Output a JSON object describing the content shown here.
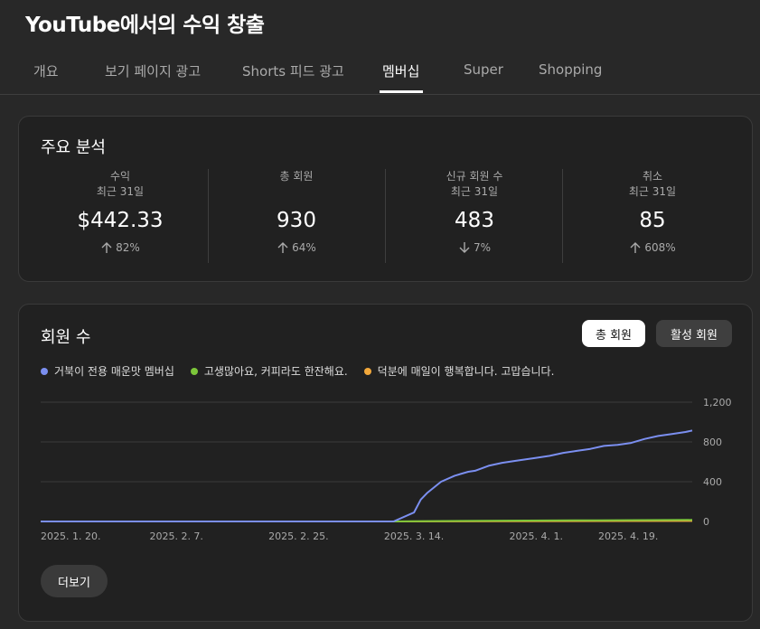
{
  "page": {
    "title": "YouTube에서의 수익 창출"
  },
  "tabs": [
    {
      "label": "개요",
      "active": false
    },
    {
      "label": "보기 페이지 광고",
      "active": false
    },
    {
      "label": "Shorts 피드 광고",
      "active": false
    },
    {
      "label": "멤버십",
      "active": true
    },
    {
      "label": "Super",
      "active": false
    },
    {
      "label": "Shopping",
      "active": false
    }
  ],
  "key_analysis": {
    "title": "주요 분석",
    "metrics": [
      {
        "label": "수익",
        "sub": "최근 31일",
        "value": "$442.33",
        "change": "82%",
        "direction": "up"
      },
      {
        "label": "총 회원",
        "sub": "",
        "value": "930",
        "change": "64%",
        "direction": "up"
      },
      {
        "label": "신규 회원 수",
        "sub": "최근 31일",
        "value": "483",
        "change": "7%",
        "direction": "down"
      },
      {
        "label": "취소",
        "sub": "최근 31일",
        "value": "85",
        "change": "608%",
        "direction": "up"
      }
    ]
  },
  "members": {
    "title": "회원 수",
    "toggle_total": "총 회원",
    "toggle_active": "활성 회원",
    "more_label": "더보기"
  },
  "colors": {
    "background": "#282828",
    "card": "#212121",
    "series_1": "#7b8ff0",
    "series_2": "#7cc63a",
    "series_3": "#f2a83b"
  },
  "chart_data": {
    "type": "line",
    "x_ticks": [
      "2025. 1. 20.",
      "2025. 2. 7.",
      "2025. 2. 25.",
      "2025. 3. 14.",
      "2025. 4. 1.",
      "2025. 4. 19."
    ],
    "x_range": [
      "2025-01-18",
      "2025-04-24"
    ],
    "y_ticks": [
      "0",
      "400",
      "800",
      "1,200"
    ],
    "ylim": [
      0,
      1200
    ],
    "grid": true,
    "legend_position": "top-left",
    "series": [
      {
        "name": "거북이 전용 매운맛 멤버십",
        "color": "#7b8ff0",
        "points": [
          [
            "2025-01-18",
            0
          ],
          [
            "2025-03-11",
            0
          ],
          [
            "2025-03-14",
            90
          ],
          [
            "2025-03-15",
            220
          ],
          [
            "2025-03-16",
            290
          ],
          [
            "2025-03-18",
            400
          ],
          [
            "2025-03-20",
            460
          ],
          [
            "2025-03-22",
            500
          ],
          [
            "2025-03-23",
            510
          ],
          [
            "2025-03-25",
            560
          ],
          [
            "2025-03-27",
            590
          ],
          [
            "2025-03-29",
            610
          ],
          [
            "2025-04-01",
            640
          ],
          [
            "2025-04-03",
            660
          ],
          [
            "2025-04-05",
            690
          ],
          [
            "2025-04-07",
            710
          ],
          [
            "2025-04-09",
            730
          ],
          [
            "2025-04-11",
            760
          ],
          [
            "2025-04-13",
            770
          ],
          [
            "2025-04-15",
            790
          ],
          [
            "2025-04-17",
            830
          ],
          [
            "2025-04-19",
            860
          ],
          [
            "2025-04-21",
            880
          ],
          [
            "2025-04-22",
            890
          ],
          [
            "2025-04-23",
            900
          ],
          [
            "2025-04-24",
            915
          ]
        ]
      },
      {
        "name": "고생많아요, 커피라도 한잔해요.",
        "color": "#7cc63a",
        "points": [
          [
            "2025-01-18",
            0
          ],
          [
            "2025-03-11",
            0
          ],
          [
            "2025-03-14",
            3
          ],
          [
            "2025-03-27",
            8
          ],
          [
            "2025-04-10",
            12
          ],
          [
            "2025-04-24",
            15
          ]
        ]
      },
      {
        "name": "덕분에 매일이 행복합니다. 고맙습니다.",
        "color": "#f2a83b",
        "points": [
          [
            "2025-01-18",
            0
          ],
          [
            "2025-03-11",
            0
          ],
          [
            "2025-03-27",
            2
          ],
          [
            "2025-04-24",
            5
          ]
        ]
      }
    ]
  }
}
